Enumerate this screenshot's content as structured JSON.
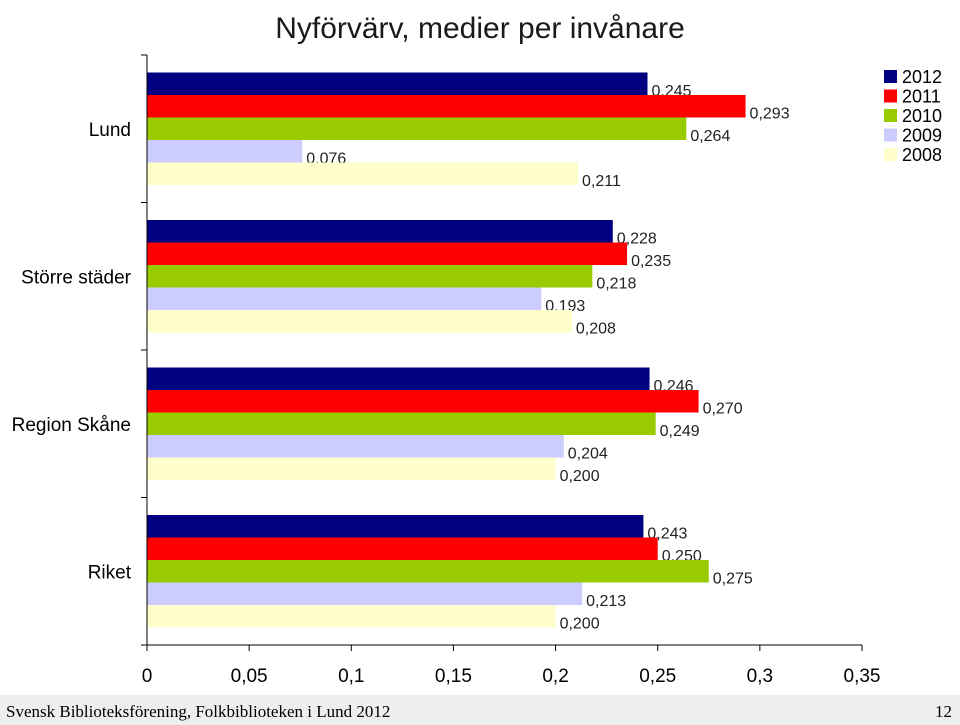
{
  "chart_data": {
    "type": "bar",
    "orientation": "horizontal",
    "title": "Nyförvärv, medier per invånare",
    "xlabel": "",
    "ylabel": "",
    "xlim": [
      0,
      0.35
    ],
    "x_ticks": [
      "0",
      "0,05",
      "0,1",
      "0,15",
      "0,2",
      "0,25",
      "0,3",
      "0,35"
    ],
    "categories": [
      "Lund",
      "Större städer",
      "Region Skåne",
      "Riket"
    ],
    "series": [
      {
        "name": "2012",
        "color": "#000080",
        "values": [
          0.245,
          0.228,
          0.246,
          0.243
        ],
        "labels": [
          "0,245",
          "0,228",
          "0,246",
          "0,243"
        ]
      },
      {
        "name": "2011",
        "color": "#ff0000",
        "values": [
          0.293,
          0.235,
          0.27,
          0.25
        ],
        "labels": [
          "0,293",
          "0,235",
          "0,270",
          "0,250"
        ]
      },
      {
        "name": "2010",
        "color": "#99cc00",
        "values": [
          0.264,
          0.218,
          0.249,
          0.275
        ],
        "labels": [
          "0,264",
          "0,218",
          "0,249",
          "0,275"
        ]
      },
      {
        "name": "2009",
        "color": "#ccccff",
        "values": [
          0.076,
          0.193,
          0.204,
          0.213
        ],
        "labels": [
          "0,076",
          "0,193",
          "0,204",
          "0,213"
        ]
      },
      {
        "name": "2008",
        "color": "#ffffcc",
        "values": [
          0.211,
          0.208,
          0.2,
          0.2
        ],
        "labels": [
          "0,211",
          "0,208",
          "0,200",
          "0,200"
        ]
      }
    ],
    "legend_position": "top-right",
    "grid": false
  },
  "footer": {
    "source": "Svensk Biblioteksförening, Folkbiblioteken i Lund 2012",
    "page_number": "12"
  }
}
